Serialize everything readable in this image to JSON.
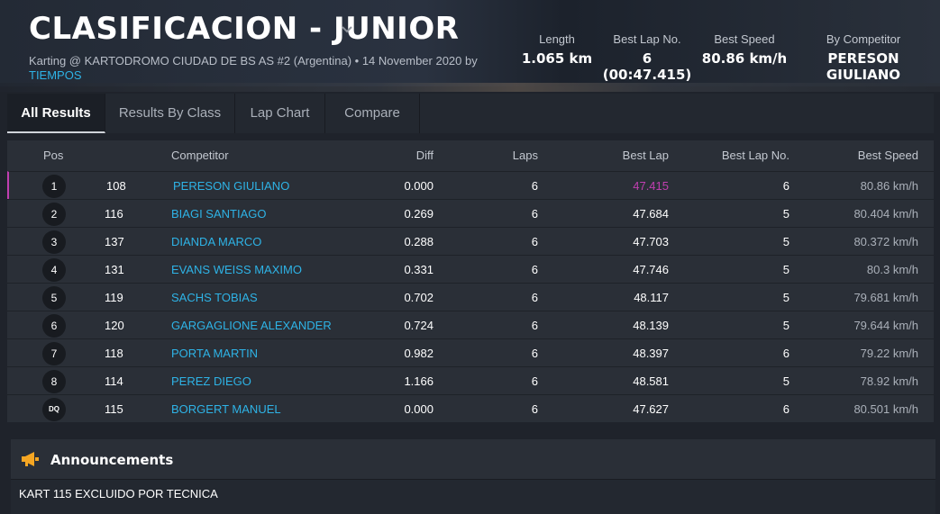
{
  "header": {
    "title": "CLASIFICACION - JUNIOR",
    "subtitle": "Karting @ KARTODROMO CIUDAD DE BS AS #2 (Argentina) • 14 November 2020 by",
    "subtitle_link": "TIEMPOS",
    "stats": [
      {
        "label": "Length",
        "value": "1.065 km"
      },
      {
        "label": "Best Lap No.",
        "value": "6 (00:47.415)"
      },
      {
        "label": "Best Speed",
        "value": "80.86 km/h"
      },
      {
        "label": "By Competitor",
        "value": "PERESON GIULIANO"
      }
    ]
  },
  "tabs": [
    {
      "label": "All Results",
      "active": true
    },
    {
      "label": "Results By Class",
      "active": false
    },
    {
      "label": "Lap Chart",
      "active": false
    },
    {
      "label": "Compare",
      "active": false
    }
  ],
  "table": {
    "headers": {
      "pos": "Pos",
      "competitor": "Competitor",
      "diff": "Diff",
      "laps": "Laps",
      "best_lap": "Best Lap",
      "best_lap_no": "Best Lap No.",
      "best_speed": "Best Speed"
    },
    "rows": [
      {
        "pos": "1",
        "num": "108",
        "name": "PERESON GIULIANO",
        "diff": "0.000",
        "laps": "6",
        "best": "47.415",
        "best_no": "6",
        "speed": "80.86 km/h"
      },
      {
        "pos": "2",
        "num": "116",
        "name": "BIAGI SANTIAGO",
        "diff": "0.269",
        "laps": "6",
        "best": "47.684",
        "best_no": "5",
        "speed": "80.404 km/h"
      },
      {
        "pos": "3",
        "num": "137",
        "name": "DIANDA MARCO",
        "diff": "0.288",
        "laps": "6",
        "best": "47.703",
        "best_no": "5",
        "speed": "80.372 km/h"
      },
      {
        "pos": "4",
        "num": "131",
        "name": "EVANS WEISS MAXIMO",
        "diff": "0.331",
        "laps": "6",
        "best": "47.746",
        "best_no": "5",
        "speed": "80.3 km/h"
      },
      {
        "pos": "5",
        "num": "119",
        "name": "SACHS TOBIAS",
        "diff": "0.702",
        "laps": "6",
        "best": "48.117",
        "best_no": "5",
        "speed": "79.681 km/h"
      },
      {
        "pos": "6",
        "num": "120",
        "name": "GARGAGLIONE ALEXANDER",
        "diff": "0.724",
        "laps": "6",
        "best": "48.139",
        "best_no": "5",
        "speed": "79.644 km/h"
      },
      {
        "pos": "7",
        "num": "118",
        "name": "PORTA MARTIN",
        "diff": "0.982",
        "laps": "6",
        "best": "48.397",
        "best_no": "6",
        "speed": "79.22 km/h"
      },
      {
        "pos": "8",
        "num": "114",
        "name": "PEREZ DIEGO",
        "diff": "1.166",
        "laps": "6",
        "best": "48.581",
        "best_no": "5",
        "speed": "78.92 km/h"
      },
      {
        "pos": "DQ",
        "num": "115",
        "name": "BORGERT MANUEL",
        "diff": "0.000",
        "laps": "6",
        "best": "47.627",
        "best_no": "6",
        "speed": "80.501 km/h"
      }
    ]
  },
  "announcements": {
    "title": "Announcements",
    "text": "KART 115 EXCLUIDO POR TECNICA",
    "icon": "megaphone-icon"
  },
  "colors": {
    "accent": "#2eb3e6",
    "best_lap": "#c03fb0",
    "megaphone": "#f5a623"
  }
}
